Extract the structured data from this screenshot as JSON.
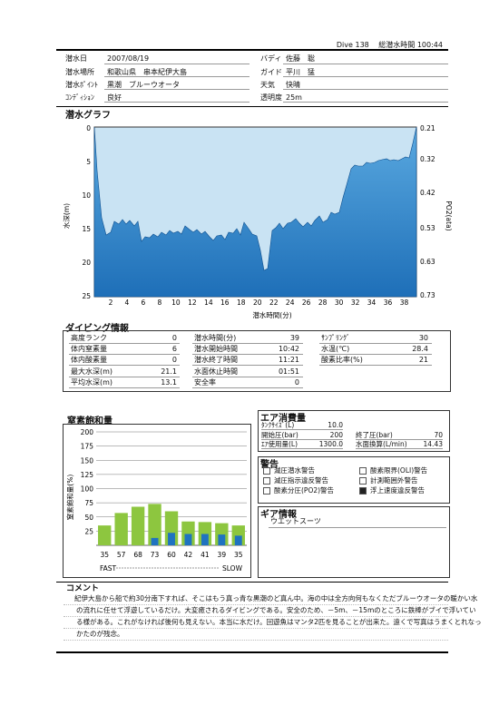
{
  "header": {
    "dive_no": "Dive 138",
    "total_label": "総潜水時間",
    "total_value": "100:44"
  },
  "info_left": [
    {
      "label": "潜水日",
      "value": "2007/08/19"
    },
    {
      "label": "潜水場所",
      "value": "和歌山県　串本紀伊大島"
    },
    {
      "label": "潜水ﾎﾟｲﾝﾄ",
      "value": "黒潮　ブルーウオータ"
    },
    {
      "label": "ｺﾝﾃﾞｨｼｮﾝ",
      "value": "良好"
    }
  ],
  "info_right": [
    {
      "label": "バディ",
      "value": "佐藤　聡"
    },
    {
      "label": "ガイド",
      "value": "平川　猛"
    },
    {
      "label": "天気",
      "value": "快晴"
    },
    {
      "label": "透明度",
      "value": "25m"
    }
  ],
  "dive_graph": {
    "title": "潜水グラフ",
    "xlabel": "潜水時間(分)",
    "ylabel": "水深(m)",
    "ylabel_right": "PO2(ata)",
    "left_ticks": [
      "0",
      "5",
      "10",
      "15",
      "20",
      "25"
    ],
    "right_ticks": [
      "0.21",
      "0.32",
      "0.42",
      "0.53",
      "0.63",
      "0.73"
    ],
    "x_ticks": [
      "2",
      "4",
      "6",
      "8",
      "10",
      "12",
      "14",
      "16",
      "18",
      "20",
      "22",
      "24",
      "26",
      "28",
      "30",
      "32",
      "34",
      "36",
      "38"
    ],
    "fill_color": "#2a7fc4",
    "bg_color": "#c9e3f3"
  },
  "dive_info": {
    "title": "ダイビング情報",
    "col1": [
      {
        "label": "高度ランク",
        "value": "0"
      },
      {
        "label": "体内窒素量",
        "value": "6"
      },
      {
        "label": "体内酸素量",
        "value": "0"
      },
      {
        "label": "最大水深(m)",
        "value": "21.1"
      },
      {
        "label": "平均水深(m)",
        "value": "13.1"
      }
    ],
    "col2": [
      {
        "label": "潜水時間(分)",
        "value": "39"
      },
      {
        "label": "潜水開始時間",
        "value": "10:42"
      },
      {
        "label": "潜水終了時間",
        "value": "11:21"
      },
      {
        "label": "水面休止時間",
        "value": "01:51"
      },
      {
        "label": "安全率",
        "value": "0"
      }
    ],
    "col3": [
      {
        "label": "ｻﾝﾌﾟﾘﾝｸﾞ",
        "value": "30"
      },
      {
        "label": "水温(℃)",
        "value": "28.4"
      },
      {
        "label": "酸素比率(%)",
        "value": "21"
      }
    ]
  },
  "nitrogen": {
    "title": "窒素飽和量",
    "ylabel": "窒素飽和量(%)",
    "fast_label": "FAST",
    "slow_label": "SLOW"
  },
  "chart_data": {
    "type": "bar",
    "categories": [
      "35",
      "57",
      "68",
      "73",
      "60",
      "42",
      "41",
      "39",
      "35"
    ],
    "series": [
      {
        "values": [
          35,
          57,
          68,
          73,
          60,
          42,
          41,
          39,
          35
        ]
      },
      {
        "values": [
          0,
          0,
          0,
          13,
          22,
          20,
          20,
          19,
          17
        ]
      }
    ],
    "ylim": [
      0,
      200
    ],
    "y_ticks": [
      "200",
      "175",
      "150",
      "125",
      "100",
      "75",
      "50",
      "25"
    ],
    "colors": {
      "green": "#8dc63f",
      "blue": "#1f73c0"
    }
  },
  "air": {
    "title": "エア消費量",
    "rows": [
      [
        {
          "label": "ﾀﾝｸｻｲｽﾞ(L)",
          "value": "10.0"
        }
      ],
      [
        {
          "label": "開始圧(bar)",
          "value": "200"
        },
        {
          "label": "終了圧(bar)",
          "value": "70"
        }
      ],
      [
        {
          "label": "ｴｱ使用量(L)",
          "value": "1300.0"
        },
        {
          "label": "水面換算(L/min)",
          "value": "14.43"
        }
      ]
    ]
  },
  "warnings": {
    "title": "警告",
    "items": [
      {
        "label": "減圧潜水警告",
        "checked": false
      },
      {
        "label": "酸素限界(OLI)警告",
        "checked": false
      },
      {
        "label": "減圧指示違反警告",
        "checked": false
      },
      {
        "label": "計測範囲外警告",
        "checked": false
      },
      {
        "label": "酸素分圧(PO2)警告",
        "checked": false
      },
      {
        "label": "浮上速度違反警告",
        "checked": true
      }
    ]
  },
  "gear": {
    "title": "ギア情報",
    "value": "ウエットスーツ"
  },
  "comment": {
    "title": "コメント",
    "lines": [
      "紀伊大島から船で約30分南下すれば、そこはもう真っ青な黒潮のど真ん中。海の中は全方向何もなくただブルーウオータの暖かい水",
      "の流れに任せて浮遊しているだけ。大変癒されるダイビングである。安全のため、－5m、－15mのところに鉄棒がブイで浮いてい",
      "る様がある。これがなければ後何も見えない。本当に水だけ。回遊魚はマンタ2匹を見ることが出来た。遠くで写真はうまくとれなっ",
      "かたのが残念。"
    ]
  }
}
